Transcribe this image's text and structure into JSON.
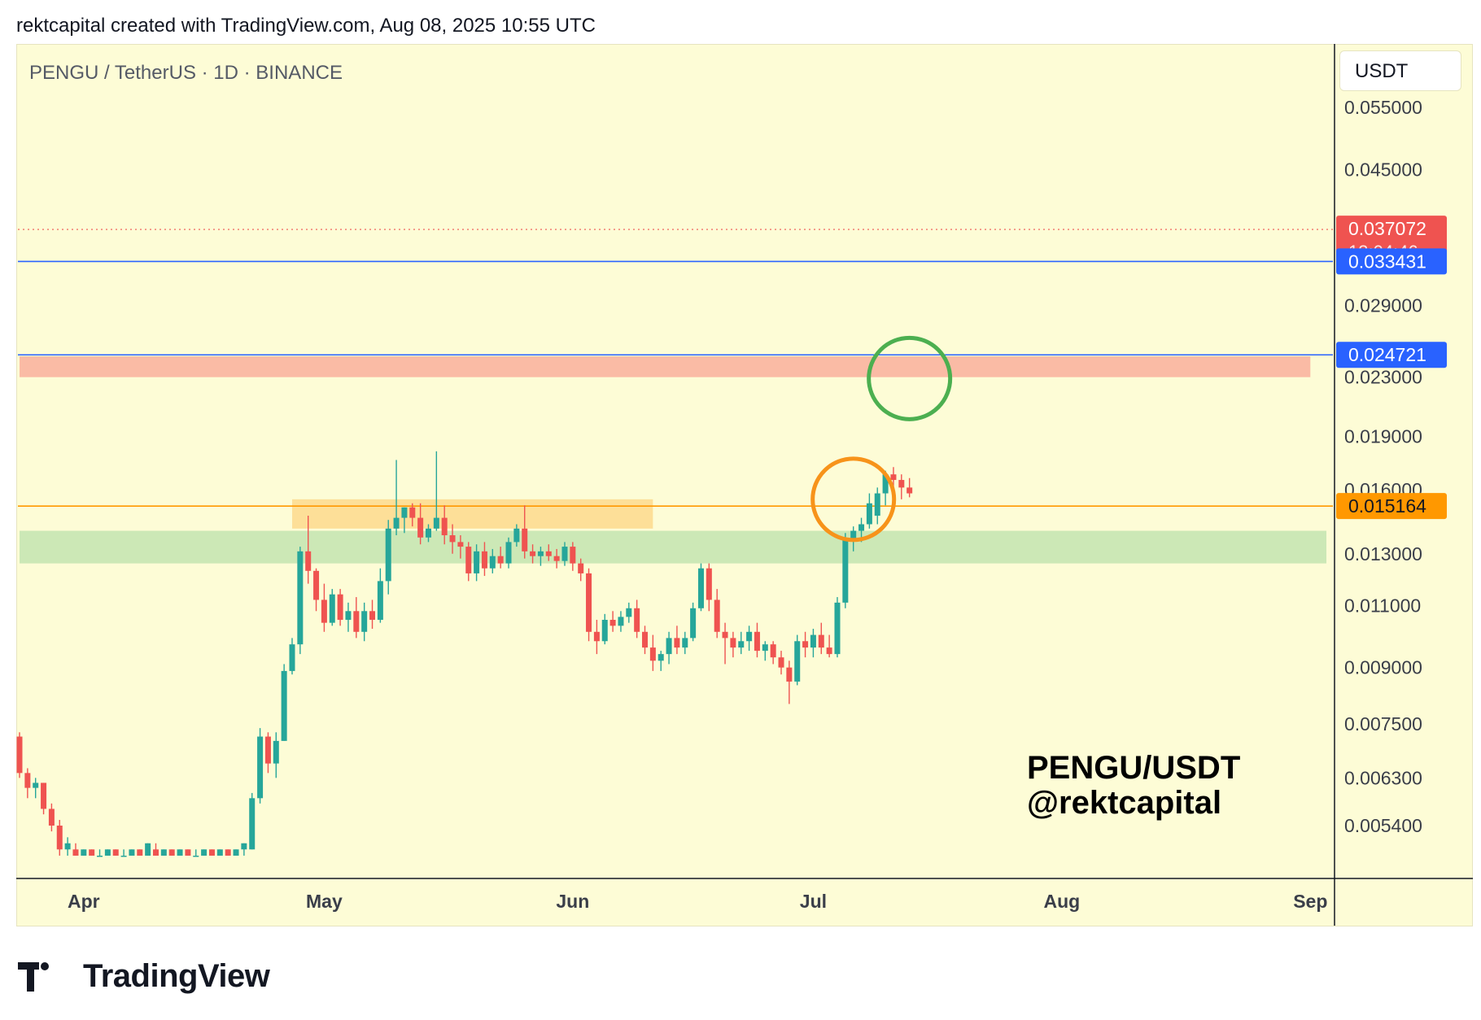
{
  "header": {
    "credit": "rektcapital created with TradingView.com, Aug 08, 2025 10:55 UTC"
  },
  "chart": {
    "symbol_label": "PENGU / TetherUS · 1D · BINANCE",
    "currency_label": "USDT",
    "watermark_line1": "PENGU/USDT",
    "watermark_line2": "@rektcapital",
    "countdown": "13:04:46"
  },
  "footer": {
    "brand": "TradingView"
  },
  "colors": {
    "up": "#26a69a",
    "down": "#ef5350",
    "background": "#fdfcd6",
    "blue_line": "#2962ff",
    "orange_line": "#ff9800"
  },
  "chart_data": {
    "type": "candlestick",
    "scale": "log",
    "ylim": [
      0.0049,
      0.058
    ],
    "y_ticks": [
      "0.055000",
      "0.045000",
      "0.029000",
      "0.023000",
      "0.019000",
      "0.016000",
      "0.013000",
      "0.011000",
      "0.009000",
      "0.007500",
      "0.006300",
      "0.005400"
    ],
    "x_ticks": [
      {
        "label": "Apr",
        "date": "2025-04-01"
      },
      {
        "label": "May",
        "date": "2025-05-01"
      },
      {
        "label": "Jun",
        "date": "2025-06-01"
      },
      {
        "label": "Jul",
        "date": "2025-07-01"
      },
      {
        "label": "Aug",
        "date": "2025-08-01"
      },
      {
        "label": "Sep",
        "date": "2025-09-01"
      }
    ],
    "x_start_date": "2025-03-24",
    "x_end_date": "2025-09-03",
    "levels": [
      {
        "name": "current",
        "value": 0.037072,
        "label": "0.037072",
        "style": "dotted",
        "color": "#ef5350"
      },
      {
        "name": "blue-upper",
        "value": 0.033431,
        "label": "0.033431",
        "style": "solid",
        "color": "#2962ff"
      },
      {
        "name": "purple-lower",
        "value": 0.024721,
        "label": "0.024721",
        "style": "solid",
        "color": "#2962ff"
      },
      {
        "name": "orange",
        "value": 0.015164,
        "label": "0.015164",
        "style": "solid",
        "color": "#ff9800"
      }
    ],
    "zones": [
      {
        "name": "red-zone",
        "from": 0.023,
        "to": 0.0246,
        "start": "2025-03-24",
        "end": "2025-09-01",
        "color": "#f9b4a0"
      },
      {
        "name": "orange-zone",
        "from": 0.0141,
        "to": 0.0155,
        "start": "2025-04-27",
        "end": "2025-06-11",
        "color": "#fddb91"
      },
      {
        "name": "green-zone",
        "from": 0.0126,
        "to": 0.014,
        "start": "2025-03-24",
        "end": "2025-09-03",
        "color": "#c6e5b3"
      }
    ],
    "circles": [
      {
        "name": "orange-circle",
        "date": "2025-07-06",
        "price": 0.0155,
        "color": "#f7931a"
      },
      {
        "name": "green-circle",
        "date": "2025-07-13",
        "price": 0.0229,
        "color": "#4caf50"
      }
    ],
    "candles": [
      {
        "d": "2025-03-24",
        "o": 0.0072,
        "h": 0.0073,
        "l": 0.0063,
        "c": 0.0064
      },
      {
        "d": "2025-03-25",
        "o": 0.0064,
        "h": 0.0065,
        "l": 0.0059,
        "c": 0.0061
      },
      {
        "d": "2025-03-26",
        "o": 0.0061,
        "h": 0.0063,
        "l": 0.0059,
        "c": 0.0062
      },
      {
        "d": "2025-03-27",
        "o": 0.0062,
        "h": 0.0062,
        "l": 0.0056,
        "c": 0.0057
      },
      {
        "d": "2025-03-28",
        "o": 0.0057,
        "h": 0.0058,
        "l": 0.0053,
        "c": 0.0054
      },
      {
        "d": "2025-03-29",
        "o": 0.0054,
        "h": 0.0055,
        "l": 0.0049,
        "c": 0.005
      },
      {
        "d": "2025-03-30",
        "o": 0.005,
        "h": 0.0052,
        "l": 0.0049,
        "c": 0.0051
      },
      {
        "d": "2025-03-31",
        "o": 0.005,
        "h": 0.0051,
        "l": 0.0049,
        "c": 0.0049
      },
      {
        "d": "2025-04-01",
        "o": 0.0049,
        "h": 0.005,
        "l": 0.0049,
        "c": 0.005
      },
      {
        "d": "2025-04-02",
        "o": 0.005,
        "h": 0.005,
        "l": 0.0049,
        "c": 0.0049
      },
      {
        "d": "2025-04-03",
        "o": 0.0049,
        "h": 0.005,
        "l": 0.0049,
        "c": 0.0049
      },
      {
        "d": "2025-04-04",
        "o": 0.0049,
        "h": 0.005,
        "l": 0.0049,
        "c": 0.005
      },
      {
        "d": "2025-04-05",
        "o": 0.005,
        "h": 0.005,
        "l": 0.0049,
        "c": 0.0049
      },
      {
        "d": "2025-04-06",
        "o": 0.0049,
        "h": 0.005,
        "l": 0.0049,
        "c": 0.0049
      },
      {
        "d": "2025-04-07",
        "o": 0.0049,
        "h": 0.005,
        "l": 0.0049,
        "c": 0.005
      },
      {
        "d": "2025-04-08",
        "o": 0.005,
        "h": 0.005,
        "l": 0.0049,
        "c": 0.0049
      },
      {
        "d": "2025-04-09",
        "o": 0.0049,
        "h": 0.0051,
        "l": 0.0049,
        "c": 0.0051
      },
      {
        "d": "2025-04-10",
        "o": 0.005,
        "h": 0.0051,
        "l": 0.0049,
        "c": 0.0049
      },
      {
        "d": "2025-04-11",
        "o": 0.0049,
        "h": 0.005,
        "l": 0.0049,
        "c": 0.005
      },
      {
        "d": "2025-04-12",
        "o": 0.005,
        "h": 0.005,
        "l": 0.0049,
        "c": 0.0049
      },
      {
        "d": "2025-04-13",
        "o": 0.0049,
        "h": 0.005,
        "l": 0.0049,
        "c": 0.005
      },
      {
        "d": "2025-04-14",
        "o": 0.005,
        "h": 0.005,
        "l": 0.0049,
        "c": 0.0049
      },
      {
        "d": "2025-04-15",
        "o": 0.0049,
        "h": 0.005,
        "l": 0.0049,
        "c": 0.0049
      },
      {
        "d": "2025-04-16",
        "o": 0.0049,
        "h": 0.005,
        "l": 0.0049,
        "c": 0.005
      },
      {
        "d": "2025-04-17",
        "o": 0.005,
        "h": 0.005,
        "l": 0.0049,
        "c": 0.0049
      },
      {
        "d": "2025-04-18",
        "o": 0.0049,
        "h": 0.005,
        "l": 0.0049,
        "c": 0.005
      },
      {
        "d": "2025-04-19",
        "o": 0.005,
        "h": 0.005,
        "l": 0.0049,
        "c": 0.0049
      },
      {
        "d": "2025-04-20",
        "o": 0.0049,
        "h": 0.005,
        "l": 0.0049,
        "c": 0.005
      },
      {
        "d": "2025-04-21",
        "o": 0.005,
        "h": 0.0051,
        "l": 0.0049,
        "c": 0.0051
      },
      {
        "d": "2025-04-22",
        "o": 0.005,
        "h": 0.006,
        "l": 0.005,
        "c": 0.0059
      },
      {
        "d": "2025-04-23",
        "o": 0.0059,
        "h": 0.0074,
        "l": 0.0058,
        "c": 0.0072
      },
      {
        "d": "2025-04-24",
        "o": 0.0072,
        "h": 0.0073,
        "l": 0.0064,
        "c": 0.0066
      },
      {
        "d": "2025-04-25",
        "o": 0.0066,
        "h": 0.0073,
        "l": 0.0063,
        "c": 0.0071
      },
      {
        "d": "2025-04-26",
        "o": 0.0071,
        "h": 0.0091,
        "l": 0.0071,
        "c": 0.0089
      },
      {
        "d": "2025-04-27",
        "o": 0.0089,
        "h": 0.0099,
        "l": 0.0088,
        "c": 0.0097
      },
      {
        "d": "2025-04-28",
        "o": 0.0097,
        "h": 0.0133,
        "l": 0.0094,
        "c": 0.0131
      },
      {
        "d": "2025-04-29",
        "o": 0.0131,
        "h": 0.0147,
        "l": 0.0118,
        "c": 0.0123
      },
      {
        "d": "2025-04-30",
        "o": 0.0123,
        "h": 0.0124,
        "l": 0.0108,
        "c": 0.0112
      },
      {
        "d": "2025-05-01",
        "o": 0.0112,
        "h": 0.0118,
        "l": 0.0101,
        "c": 0.0104
      },
      {
        "d": "2025-05-02",
        "o": 0.0104,
        "h": 0.0116,
        "l": 0.0103,
        "c": 0.0114
      },
      {
        "d": "2025-05-03",
        "o": 0.0114,
        "h": 0.0116,
        "l": 0.0103,
        "c": 0.0105
      },
      {
        "d": "2025-05-04",
        "o": 0.0105,
        "h": 0.0111,
        "l": 0.0101,
        "c": 0.0108
      },
      {
        "d": "2025-05-05",
        "o": 0.0108,
        "h": 0.0113,
        "l": 0.0099,
        "c": 0.0101
      },
      {
        "d": "2025-05-06",
        "o": 0.0101,
        "h": 0.0111,
        "l": 0.0098,
        "c": 0.0108
      },
      {
        "d": "2025-05-07",
        "o": 0.0108,
        "h": 0.0112,
        "l": 0.0102,
        "c": 0.0105
      },
      {
        "d": "2025-05-08",
        "o": 0.0105,
        "h": 0.0124,
        "l": 0.0104,
        "c": 0.0119
      },
      {
        "d": "2025-05-09",
        "o": 0.0119,
        "h": 0.0145,
        "l": 0.0114,
        "c": 0.0141
      },
      {
        "d": "2025-05-10",
        "o": 0.0141,
        "h": 0.0176,
        "l": 0.0138,
        "c": 0.0146
      },
      {
        "d": "2025-05-11",
        "o": 0.0146,
        "h": 0.0151,
        "l": 0.0139,
        "c": 0.0151
      },
      {
        "d": "2025-05-12",
        "o": 0.0151,
        "h": 0.0153,
        "l": 0.0142,
        "c": 0.0146
      },
      {
        "d": "2025-05-13",
        "o": 0.0146,
        "h": 0.0153,
        "l": 0.0134,
        "c": 0.0137
      },
      {
        "d": "2025-05-14",
        "o": 0.0137,
        "h": 0.0143,
        "l": 0.0135,
        "c": 0.0141
      },
      {
        "d": "2025-05-15",
        "o": 0.0141,
        "h": 0.0181,
        "l": 0.014,
        "c": 0.0146
      },
      {
        "d": "2025-05-16",
        "o": 0.0146,
        "h": 0.0152,
        "l": 0.0134,
        "c": 0.0138
      },
      {
        "d": "2025-05-17",
        "o": 0.0138,
        "h": 0.0143,
        "l": 0.013,
        "c": 0.0135
      },
      {
        "d": "2025-05-18",
        "o": 0.0135,
        "h": 0.0138,
        "l": 0.0128,
        "c": 0.0133
      },
      {
        "d": "2025-05-19",
        "o": 0.0133,
        "h": 0.0135,
        "l": 0.0119,
        "c": 0.0122
      },
      {
        "d": "2025-05-20",
        "o": 0.0122,
        "h": 0.0134,
        "l": 0.0119,
        "c": 0.0131
      },
      {
        "d": "2025-05-21",
        "o": 0.0131,
        "h": 0.0135,
        "l": 0.0121,
        "c": 0.0124
      },
      {
        "d": "2025-05-22",
        "o": 0.0124,
        "h": 0.0132,
        "l": 0.0122,
        "c": 0.0129
      },
      {
        "d": "2025-05-23",
        "o": 0.0129,
        "h": 0.0133,
        "l": 0.0124,
        "c": 0.0126
      },
      {
        "d": "2025-05-24",
        "o": 0.0126,
        "h": 0.0137,
        "l": 0.0124,
        "c": 0.0135
      },
      {
        "d": "2025-05-25",
        "o": 0.0135,
        "h": 0.0143,
        "l": 0.0133,
        "c": 0.0141
      },
      {
        "d": "2025-05-26",
        "o": 0.0141,
        "h": 0.0152,
        "l": 0.0128,
        "c": 0.0131
      },
      {
        "d": "2025-05-27",
        "o": 0.0131,
        "h": 0.0134,
        "l": 0.0126,
        "c": 0.0129
      },
      {
        "d": "2025-05-28",
        "o": 0.0129,
        "h": 0.0133,
        "l": 0.0125,
        "c": 0.0131
      },
      {
        "d": "2025-05-29",
        "o": 0.0131,
        "h": 0.0134,
        "l": 0.0127,
        "c": 0.0129
      },
      {
        "d": "2025-05-30",
        "o": 0.0129,
        "h": 0.0132,
        "l": 0.0124,
        "c": 0.0127
      },
      {
        "d": "2025-05-31",
        "o": 0.0127,
        "h": 0.0135,
        "l": 0.0125,
        "c": 0.0133
      },
      {
        "d": "2025-06-01",
        "o": 0.0133,
        "h": 0.0135,
        "l": 0.0123,
        "c": 0.0126
      },
      {
        "d": "2025-06-02",
        "o": 0.0126,
        "h": 0.0128,
        "l": 0.0119,
        "c": 0.0122
      },
      {
        "d": "2025-06-03",
        "o": 0.0122,
        "h": 0.0124,
        "l": 0.0098,
        "c": 0.0101
      },
      {
        "d": "2025-06-04",
        "o": 0.0101,
        "h": 0.0105,
        "l": 0.0094,
        "c": 0.0098
      },
      {
        "d": "2025-06-05",
        "o": 0.0098,
        "h": 0.0107,
        "l": 0.0097,
        "c": 0.0105
      },
      {
        "d": "2025-06-06",
        "o": 0.0105,
        "h": 0.0108,
        "l": 0.0101,
        "c": 0.0103
      },
      {
        "d": "2025-06-07",
        "o": 0.0103,
        "h": 0.0108,
        "l": 0.0101,
        "c": 0.0106
      },
      {
        "d": "2025-06-08",
        "o": 0.0106,
        "h": 0.0111,
        "l": 0.0104,
        "c": 0.0109
      },
      {
        "d": "2025-06-09",
        "o": 0.0109,
        "h": 0.0112,
        "l": 0.0099,
        "c": 0.0101
      },
      {
        "d": "2025-06-10",
        "o": 0.0101,
        "h": 0.0103,
        "l": 0.0094,
        "c": 0.0096
      },
      {
        "d": "2025-06-11",
        "o": 0.0096,
        "h": 0.01,
        "l": 0.0089,
        "c": 0.0092
      },
      {
        "d": "2025-06-12",
        "o": 0.0092,
        "h": 0.0095,
        "l": 0.0089,
        "c": 0.0094
      },
      {
        "d": "2025-06-13",
        "o": 0.0094,
        "h": 0.0101,
        "l": 0.0091,
        "c": 0.0099
      },
      {
        "d": "2025-06-14",
        "o": 0.0099,
        "h": 0.0103,
        "l": 0.0094,
        "c": 0.0096
      },
      {
        "d": "2025-06-15",
        "o": 0.0096,
        "h": 0.0101,
        "l": 0.0094,
        "c": 0.0099
      },
      {
        "d": "2025-06-16",
        "o": 0.0099,
        "h": 0.0111,
        "l": 0.0098,
        "c": 0.0109
      },
      {
        "d": "2025-06-17",
        "o": 0.0109,
        "h": 0.0126,
        "l": 0.0108,
        "c": 0.0124
      },
      {
        "d": "2025-06-18",
        "o": 0.0124,
        "h": 0.0126,
        "l": 0.0108,
        "c": 0.0112
      },
      {
        "d": "2025-06-19",
        "o": 0.0112,
        "h": 0.0116,
        "l": 0.0099,
        "c": 0.0101
      },
      {
        "d": "2025-06-20",
        "o": 0.0101,
        "h": 0.0104,
        "l": 0.0091,
        "c": 0.0099
      },
      {
        "d": "2025-06-21",
        "o": 0.0099,
        "h": 0.0101,
        "l": 0.0093,
        "c": 0.0096
      },
      {
        "d": "2025-06-22",
        "o": 0.0096,
        "h": 0.0101,
        "l": 0.0094,
        "c": 0.0098
      },
      {
        "d": "2025-06-23",
        "o": 0.0098,
        "h": 0.0103,
        "l": 0.0095,
        "c": 0.0101
      },
      {
        "d": "2025-06-24",
        "o": 0.0101,
        "h": 0.0104,
        "l": 0.0093,
        "c": 0.0095
      },
      {
        "d": "2025-06-25",
        "o": 0.0095,
        "h": 0.0098,
        "l": 0.0092,
        "c": 0.0097
      },
      {
        "d": "2025-06-26",
        "o": 0.0097,
        "h": 0.0098,
        "l": 0.0091,
        "c": 0.0093
      },
      {
        "d": "2025-06-27",
        "o": 0.0093,
        "h": 0.0095,
        "l": 0.0088,
        "c": 0.009
      },
      {
        "d": "2025-06-28",
        "o": 0.009,
        "h": 0.0092,
        "l": 0.008,
        "c": 0.0086
      },
      {
        "d": "2025-06-29",
        "o": 0.0086,
        "h": 0.01,
        "l": 0.0085,
        "c": 0.0098
      },
      {
        "d": "2025-06-30",
        "o": 0.0098,
        "h": 0.0101,
        "l": 0.0093,
        "c": 0.0096
      },
      {
        "d": "2025-07-01",
        "o": 0.0096,
        "h": 0.0102,
        "l": 0.0093,
        "c": 0.01
      },
      {
        "d": "2025-07-02",
        "o": 0.01,
        "h": 0.0104,
        "l": 0.0094,
        "c": 0.0096
      },
      {
        "d": "2025-07-03",
        "o": 0.0096,
        "h": 0.01,
        "l": 0.0093,
        "c": 0.0094
      },
      {
        "d": "2025-07-04",
        "o": 0.0094,
        "h": 0.0113,
        "l": 0.0093,
        "c": 0.0111
      },
      {
        "d": "2025-07-05",
        "o": 0.0111,
        "h": 0.0139,
        "l": 0.0109,
        "c": 0.0136
      },
      {
        "d": "2025-07-06",
        "o": 0.0136,
        "h": 0.0142,
        "l": 0.0131,
        "c": 0.014
      },
      {
        "d": "2025-07-07",
        "o": 0.014,
        "h": 0.0146,
        "l": 0.0135,
        "c": 0.0143
      },
      {
        "d": "2025-07-08",
        "o": 0.0143,
        "h": 0.0158,
        "l": 0.0141,
        "c": 0.0153
      },
      {
        "d": "2025-07-09",
        "o": 0.0147,
        "h": 0.0161,
        "l": 0.0143,
        "c": 0.0158
      },
      {
        "d": "2025-07-10",
        "o": 0.0158,
        "h": 0.017,
        "l": 0.0152,
        "c": 0.0168
      },
      {
        "d": "2025-07-11",
        "o": 0.0168,
        "h": 0.0172,
        "l": 0.016,
        "c": 0.0165
      },
      {
        "d": "2025-07-12",
        "o": 0.0165,
        "h": 0.0168,
        "l": 0.0155,
        "c": 0.0161
      },
      {
        "d": "2025-07-13",
        "o": 0.0161,
        "h": 0.0166,
        "l": 0.0156,
        "c": 0.0158
      }
    ]
  }
}
